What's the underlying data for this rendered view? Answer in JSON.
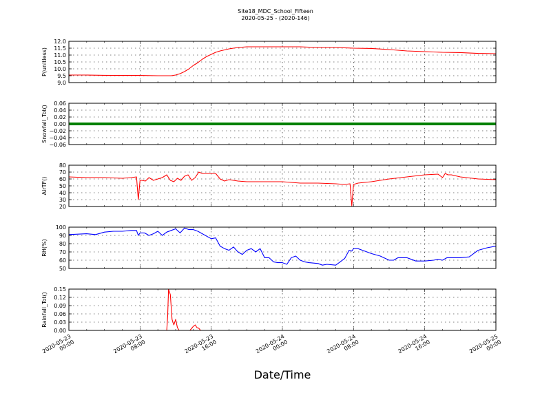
{
  "figure": {
    "title_line1": "Site18_MDC_School_Fifteen",
    "title_line2": "2020-05-25 - (2020-146)",
    "xlabel": "Date/Time",
    "x_tick_labels": [
      [
        "2020-05-23",
        "00:00"
      ],
      [
        "2020-05-23",
        "08:00"
      ],
      [
        "2020-05-23",
        "16:00"
      ],
      [
        "2020-05-24",
        "00:00"
      ],
      [
        "2020-05-24",
        "08:00"
      ],
      [
        "2020-05-24",
        "16:00"
      ],
      [
        "2020-05-25",
        "00:00"
      ]
    ],
    "x_range_hours": [
      0,
      48
    ]
  },
  "chart_data": [
    {
      "type": "line",
      "ylabel": "P(unitless)",
      "ylim": [
        9.0,
        12.0
      ],
      "yticks": [
        "9.0",
        "9.5",
        "10.0",
        "10.5",
        "11.0",
        "11.5",
        "12.0"
      ],
      "color": "#ff0000",
      "grid": true,
      "x": [
        0,
        2,
        4,
        6,
        8,
        10,
        11.5,
        12,
        12.5,
        13,
        13.5,
        14,
        14.5,
        15,
        15.5,
        16,
        16.5,
        17,
        18,
        19,
        20,
        22,
        24,
        26,
        28,
        30,
        32,
        34,
        36,
        38,
        40,
        42,
        44,
        46,
        48
      ],
      "y": [
        9.55,
        9.55,
        9.53,
        9.52,
        9.52,
        9.5,
        9.5,
        9.55,
        9.65,
        9.8,
        10.0,
        10.25,
        10.45,
        10.7,
        10.9,
        11.05,
        11.2,
        11.3,
        11.45,
        11.55,
        11.6,
        11.6,
        11.6,
        11.6,
        11.55,
        11.55,
        11.5,
        11.48,
        11.4,
        11.3,
        11.25,
        11.2,
        11.18,
        11.12,
        11.1
      ]
    },
    {
      "type": "line",
      "ylabel": "Snowfall_Tot()",
      "ylim": [
        -0.06,
        0.06
      ],
      "yticks": [
        "−0.06",
        "−0.04",
        "−0.02",
        "0.00",
        "0.02",
        "0.04",
        "0.06"
      ],
      "color": "#008000",
      "grid": true,
      "x": [
        0,
        48
      ],
      "y": [
        0,
        0
      ]
    },
    {
      "type": "line",
      "ylabel": "AirTF()",
      "ylim": [
        20,
        80
      ],
      "yticks": [
        "20",
        "30",
        "40",
        "50",
        "60",
        "70",
        "80"
      ],
      "color": "#ff0000",
      "grid": true,
      "x": [
        0,
        2,
        4,
        6,
        7,
        7.6,
        7.8,
        8.0,
        8.2,
        8.6,
        9,
        9.5,
        10,
        10.5,
        11,
        11.4,
        11.8,
        12.2,
        12.6,
        13,
        13.4,
        13.8,
        14.2,
        14.6,
        15,
        15.5,
        16,
        16.5,
        17,
        17.5,
        18,
        19,
        20,
        22,
        24,
        26,
        28,
        30,
        31,
        31.6,
        31.8,
        32,
        32.5,
        34,
        36,
        38,
        40,
        41.5,
        42,
        42.3,
        42.6,
        43,
        44,
        46,
        48
      ],
      "y": [
        63,
        62,
        62,
        61,
        62,
        63,
        30,
        58,
        58,
        57,
        62,
        58,
        60,
        62,
        66,
        58,
        56,
        61,
        58,
        64,
        66,
        58,
        62,
        70,
        68,
        68,
        68,
        68,
        60,
        57,
        59,
        57,
        56,
        56,
        56,
        54,
        54,
        53,
        52,
        53,
        21,
        52,
        54,
        56,
        60,
        63,
        66,
        67,
        62,
        68,
        66,
        66,
        63,
        60,
        59
      ]
    },
    {
      "type": "line",
      "ylabel": "RH(%)",
      "ylim": [
        50,
        100
      ],
      "yticks": [
        "50",
        "60",
        "70",
        "80",
        "90",
        "100"
      ],
      "color": "#0000ff",
      "grid": true,
      "x": [
        0,
        2,
        3,
        4,
        5,
        6,
        7,
        7.6,
        7.8,
        8,
        8.5,
        9,
        9.5,
        10,
        10.5,
        11,
        11.5,
        12,
        12.5,
        13,
        13.5,
        14,
        14.5,
        15,
        16,
        16.5,
        17,
        17.5,
        18,
        18.5,
        19,
        19.5,
        20,
        20.5,
        21,
        21.5,
        22,
        22.5,
        23,
        23.5,
        24,
        24.5,
        25,
        25.5,
        26,
        26.5,
        27,
        28,
        28.5,
        29,
        30,
        31,
        31.5,
        31.8,
        32,
        32.5,
        33,
        34,
        35,
        36,
        36.5,
        37,
        38,
        38.5,
        39,
        40,
        41,
        41.5,
        42,
        42.5,
        43,
        44,
        45,
        46,
        47,
        48
      ],
      "y": [
        91,
        92,
        91,
        94,
        95,
        95,
        96,
        96,
        90,
        93,
        93,
        90,
        92,
        95,
        90,
        94,
        96,
        98,
        93,
        99,
        97,
        97,
        95,
        92,
        86,
        87,
        77,
        74,
        72,
        76,
        70,
        67,
        72,
        74,
        70,
        74,
        63,
        63,
        58,
        57,
        57,
        55,
        63,
        65,
        60,
        58,
        57,
        56,
        54,
        55,
        54,
        62,
        72,
        71,
        74,
        74,
        72,
        68,
        65,
        60,
        60,
        63,
        63,
        61,
        59,
        59,
        60,
        61,
        60,
        63,
        63,
        63,
        64,
        72,
        75,
        77
      ]
    },
    {
      "type": "line",
      "ylabel": "Rainfall_Tot()",
      "ylim": [
        0.0,
        0.15
      ],
      "yticks": [
        "0.00",
        "0.03",
        "0.06",
        "0.09",
        "0.12",
        "0.15"
      ],
      "color": "#ff0000",
      "grid": true,
      "x": [
        0,
        11.0,
        11.1,
        11.2,
        11.4,
        11.6,
        11.8,
        12.0,
        12.2,
        12.4,
        12.6,
        13.6,
        14.0,
        14.2,
        14.4,
        14.6,
        14.8,
        48
      ],
      "y": [
        0,
        0,
        0.05,
        0.15,
        0.13,
        0.04,
        0.02,
        0.04,
        0.01,
        0.0,
        0.0,
        0.0,
        0.015,
        0.02,
        0.01,
        0.008,
        0.0,
        0
      ]
    }
  ]
}
